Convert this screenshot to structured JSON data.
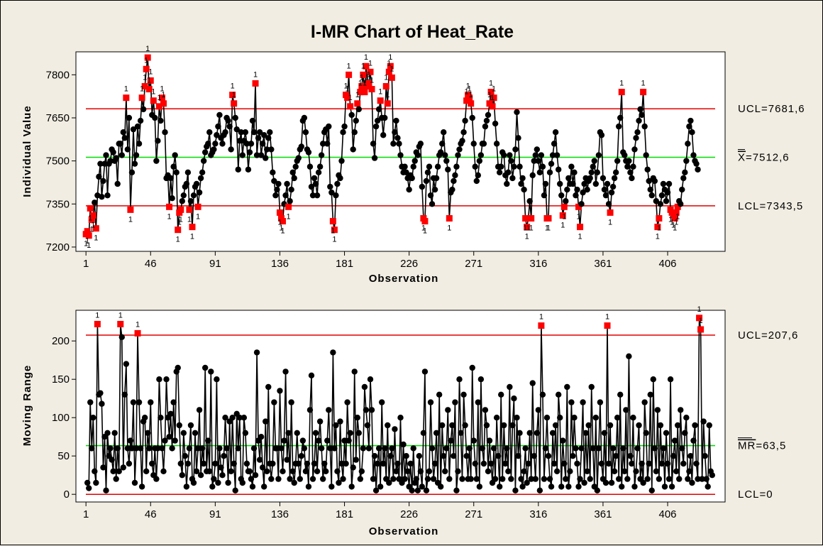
{
  "title": "I-MR Chart of Heat_Rate",
  "chart_data": [
    {
      "type": "line",
      "panel": "individuals",
      "xlabel": "Observation",
      "ylabel": "Individual Value",
      "xticks": [
        1,
        46,
        91,
        136,
        181,
        226,
        271,
        316,
        361,
        406
      ],
      "yticks": [
        7200,
        7350,
        7500,
        7650,
        7800
      ],
      "xlim": [
        -6,
        446
      ],
      "ylim": [
        7185,
        7880
      ],
      "grid": false,
      "point_count": 440,
      "reference_lines": [
        {
          "name": "UCL",
          "value": 7681.6,
          "label": "UCL=7681,6",
          "color": "#e00000"
        },
        {
          "name": "mean",
          "value": 7512.6,
          "label_symbol": "X",
          "label_value": "=7512,6",
          "color": "#00dd00"
        },
        {
          "name": "LCL",
          "value": 7343.5,
          "label": "LCL=7343,5",
          "color": "#e00000"
        }
      ],
      "flag_text": "1",
      "values": [
        7245,
        7255,
        7240,
        7335,
        7295,
        7310,
        7355,
        7265,
        7380,
        7445,
        7490,
        7375,
        7430,
        7490,
        7520,
        7380,
        7490,
        7500,
        7540,
        7530,
        7500,
        7510,
        7420,
        7560,
        7560,
        7520,
        7600,
        7580,
        7720,
        7540,
        7650,
        7330,
        7460,
        7610,
        7490,
        7520,
        7620,
        7560,
        7640,
        7720,
        7680,
        7760,
        7820,
        7860,
        7750,
        7780,
        7660,
        7710,
        7650,
        7500,
        7570,
        7690,
        7640,
        7720,
        7700,
        7600,
        7440,
        7450,
        7340,
        7440,
        7370,
        7480,
        7520,
        7460,
        7260,
        7320,
        7330,
        7360,
        7380,
        7410,
        7420,
        7460,
        7330,
        7360,
        7270,
        7380,
        7410,
        7420,
        7340,
        7390,
        7440,
        7460,
        7500,
        7530,
        7550,
        7560,
        7600,
        7520,
        7530,
        7540,
        7560,
        7590,
        7620,
        7660,
        7580,
        7560,
        7590,
        7600,
        7650,
        7640,
        7620,
        7540,
        7730,
        7700,
        7650,
        7610,
        7470,
        7570,
        7600,
        7520,
        7570,
        7600,
        7560,
        7470,
        7530,
        7560,
        7640,
        7600,
        7770,
        7520,
        7580,
        7600,
        7520,
        7560,
        7590,
        7510,
        7540,
        7580,
        7600,
        7540,
        7460,
        7430,
        7380,
        7400,
        7420,
        7320,
        7300,
        7290,
        7350,
        7380,
        7420,
        7340,
        7360,
        7400,
        7460,
        7440,
        7480,
        7500,
        7510,
        7540,
        7550,
        7640,
        7650,
        7600,
        7540,
        7530,
        7480,
        7410,
        7380,
        7440,
        7420,
        7380,
        7460,
        7480,
        7520,
        7560,
        7600,
        7610,
        7560,
        7620,
        7410,
        7390,
        7290,
        7260,
        7380,
        7420,
        7450,
        7440,
        7500,
        7600,
        7620,
        7730,
        7720,
        7800,
        7690,
        7660,
        7540,
        7600,
        7640,
        7700,
        7680,
        7740,
        7760,
        7800,
        7740,
        7830,
        7760,
        7770,
        7810,
        7750,
        7560,
        7510,
        7620,
        7640,
        7680,
        7710,
        7650,
        7590,
        7650,
        7760,
        7700,
        7810,
        7830,
        7790,
        7560,
        7600,
        7640,
        7580,
        7560,
        7520,
        7480,
        7460,
        7480,
        7460,
        7440,
        7400,
        7450,
        7440,
        7480,
        7500,
        7530,
        7520,
        7550,
        7560,
        7410,
        7300,
        7290,
        7430,
        7460,
        7480,
        7380,
        7350,
        7440,
        7400,
        7440,
        7480,
        7520,
        7530,
        7560,
        7600,
        7520,
        7500,
        7470,
        7300,
        7390,
        7400,
        7430,
        7450,
        7480,
        7520,
        7540,
        7560,
        7570,
        7600,
        7640,
        7710,
        7730,
        7720,
        7700,
        7650,
        7560,
        7480,
        7430,
        7450,
        7500,
        7520,
        7560,
        7560,
        7620,
        7640,
        7660,
        7700,
        7740,
        7690,
        7720,
        7630,
        7560,
        7480,
        7460,
        7480,
        7530,
        7520,
        7450,
        7420,
        7460,
        7520,
        7500,
        7440,
        7480,
        7540,
        7670,
        7580,
        7480,
        7420,
        7440,
        7400,
        7300,
        7270,
        7300,
        7360,
        7300,
        7450,
        7500,
        7520,
        7540,
        7500,
        7460,
        7520,
        7480,
        7380,
        7420,
        7300,
        7300,
        7460,
        7490,
        7520,
        7560,
        7600,
        7520,
        7470,
        7420,
        7380,
        7310,
        7340,
        7360,
        7400,
        7440,
        7420,
        7480,
        7420,
        7460,
        7380,
        7400,
        7340,
        7270,
        7350,
        7390,
        7420,
        7440,
        7400,
        7430,
        7440,
        7460,
        7480,
        7500,
        7420,
        7460,
        7520,
        7600,
        7590,
        7440,
        7400,
        7380,
        7420,
        7350,
        7320,
        7390,
        7410,
        7440,
        7460,
        7500,
        7620,
        7650,
        7740,
        7530,
        7520,
        7500,
        7480,
        7500,
        7460,
        7440,
        7480,
        7540,
        7580,
        7600,
        7640,
        7680,
        7660,
        7740,
        7620,
        7520,
        7470,
        7430,
        7400,
        7380,
        7440,
        7430,
        7360,
        7270,
        7300,
        7350,
        7380,
        7420,
        7400,
        7360,
        7390,
        7420,
        7330,
        7320,
        7310,
        7300,
        7320,
        7340,
        7360,
        7350,
        7400,
        7440,
        7460,
        7500,
        7560,
        7620,
        7640,
        7600,
        7520,
        7500,
        7490,
        7470
      ]
    },
    {
      "type": "line",
      "panel": "moving-range",
      "xlabel": "Observation",
      "ylabel": "Moving Range",
      "xticks": [
        1,
        46,
        91,
        136,
        181,
        226,
        271,
        316,
        361,
        406
      ],
      "yticks": [
        0,
        50,
        100,
        150,
        200
      ],
      "xlim": [
        -6,
        446
      ],
      "ylim": [
        -10,
        240
      ],
      "grid": false,
      "point_count": 439,
      "reference_lines": [
        {
          "name": "UCL",
          "value": 207.6,
          "label": "UCL=207,6",
          "color": "#e00000"
        },
        {
          "name": "mean",
          "value": 63.5,
          "label_symbol": "MR",
          "label_value": "=63,5",
          "color": "#00dd00"
        },
        {
          "name": "LCL",
          "value": 0,
          "label": "LCL=0",
          "color": "#e00000"
        }
      ],
      "flag_text": "1",
      "values": [
        15,
        8,
        120,
        60,
        100,
        30,
        15,
        222,
        130,
        132,
        118,
        35,
        75,
        5,
        80,
        50,
        60,
        45,
        30,
        80,
        20,
        60,
        30,
        222,
        205,
        35,
        130,
        170,
        60,
        40,
        70,
        60,
        120,
        15,
        60,
        210,
        120,
        60,
        10,
        95,
        100,
        30,
        80,
        60,
        120,
        40,
        25,
        60,
        20,
        60,
        150,
        100,
        60,
        30,
        70,
        150,
        100,
        75,
        105,
        60,
        120,
        70,
        160,
        165,
        90,
        40,
        25,
        80,
        50,
        10,
        40,
        60,
        90,
        20,
        15,
        80,
        30,
        60,
        110,
        25,
        60,
        40,
        165,
        30,
        70,
        30,
        160,
        10,
        20,
        40,
        150,
        15,
        60,
        35,
        25,
        50,
        100,
        60,
        15,
        95,
        30,
        100,
        40,
        5,
        105,
        60,
        100,
        20,
        15,
        100,
        80,
        40,
        30,
        30,
        20,
        10,
        60,
        25,
        185,
        70,
        45,
        75,
        35,
        10,
        95,
        30,
        140,
        40,
        20,
        40,
        120,
        60,
        60,
        20,
        135,
        60,
        30,
        70,
        160,
        45,
        80,
        20,
        120,
        30,
        15,
        40,
        80,
        40,
        20,
        50,
        70,
        60,
        30,
        40,
        10,
        110,
        155,
        20,
        40,
        80,
        30,
        70,
        95,
        60,
        20,
        40,
        30,
        70,
        110,
        60,
        10,
        185,
        60,
        90,
        30,
        15,
        95,
        40,
        20,
        70,
        40,
        120,
        70,
        80,
        10,
        35,
        160,
        45,
        100,
        80,
        20,
        30,
        60,
        140,
        110,
        90,
        60,
        150,
        110,
        20,
        50,
        5,
        40,
        60,
        10,
        120,
        40,
        60,
        20,
        90,
        15,
        50,
        60,
        20,
        85,
        30,
        40,
        20,
        100,
        15,
        65,
        20,
        50,
        30,
        10,
        40,
        5,
        60,
        15,
        20,
        5,
        50,
        30,
        10,
        80,
        160,
        5,
        20,
        30,
        120,
        60,
        20,
        40,
        80,
        15,
        130,
        10,
        90,
        50,
        30,
        60,
        110,
        20,
        70,
        90,
        50,
        120,
        5,
        30,
        150,
        80,
        20,
        130,
        90,
        50,
        20,
        60,
        20,
        165,
        70,
        40,
        20,
        120,
        10,
        150,
        60,
        40,
        110,
        90,
        30,
        70,
        40,
        15,
        60,
        20,
        100,
        50,
        10,
        130,
        20,
        90,
        40,
        60,
        30,
        140,
        20,
        90,
        125,
        5,
        100,
        50,
        80,
        20,
        10,
        30,
        60,
        15,
        40,
        80,
        20,
        145,
        50,
        20,
        80,
        110,
        5,
        220,
        130,
        20,
        60,
        100,
        50,
        20,
        10,
        80,
        40,
        90,
        30,
        130,
        100,
        10,
        70,
        40,
        20,
        140,
        10,
        30,
        120,
        50,
        100,
        60,
        40,
        10,
        20,
        60,
        120,
        15,
        80,
        30,
        90,
        20,
        140,
        60,
        10,
        100,
        5,
        60,
        120,
        40,
        20,
        80,
        15,
        220,
        40,
        90,
        15,
        60,
        30,
        50,
        100,
        20,
        130,
        10,
        60,
        30,
        110,
        20,
        180,
        50,
        40,
        100,
        10,
        30,
        60,
        90,
        20,
        40,
        15,
        120,
        80,
        20,
        40,
        130,
        5,
        150,
        60,
        30,
        110,
        20,
        90,
        40,
        60,
        10,
        80,
        40,
        20,
        150,
        10,
        50,
        70,
        30,
        90,
        20,
        110,
        60,
        40,
        80,
        100,
        20,
        30,
        50,
        15,
        70,
        90,
        40,
        20,
        230,
        215,
        20,
        95,
        50,
        20,
        10,
        90,
        30,
        25
      ]
    }
  ]
}
